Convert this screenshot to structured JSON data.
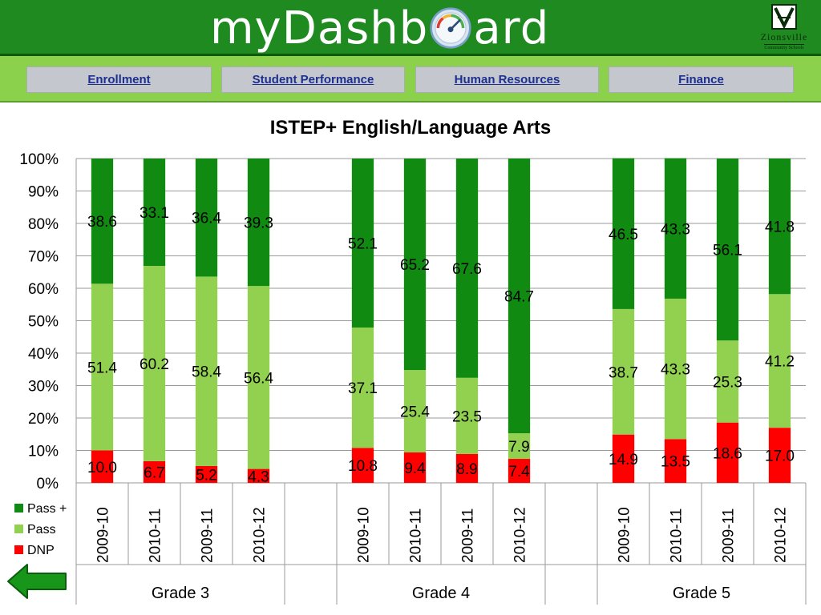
{
  "header": {
    "brand_before": "myDashb",
    "brand_after": "ard",
    "gauge_icon": "speedometer-gauge-icon",
    "logo": {
      "icon": "zionsville-crest-icon",
      "word": "Zionsville",
      "sub": "Community Schools"
    }
  },
  "nav": {
    "items": [
      {
        "label": "Enrollment"
      },
      {
        "label": "Student Performance"
      },
      {
        "label": "Human Resources"
      },
      {
        "label": "Finance"
      }
    ]
  },
  "back_icon": "back-arrow-icon",
  "colors": {
    "header_green": "#1f8a1f",
    "nav_green": "#8cd14c",
    "pass_plus": "#118a11",
    "pass": "#92d050",
    "dnp": "#ff0000"
  },
  "chart_data": {
    "type": "bar",
    "stacked": true,
    "percent_stacked": true,
    "title": "ISTEP+ English/Language Arts",
    "ylim": [
      0,
      100
    ],
    "yticks": [
      "0%",
      "10%",
      "20%",
      "30%",
      "40%",
      "50%",
      "60%",
      "70%",
      "80%",
      "90%",
      "100%"
    ],
    "grid": true,
    "legend_position": "left",
    "groups": [
      "Grade 3",
      "Grade 4",
      "Grade 5"
    ],
    "categories": [
      "2009-10",
      "2010-11",
      "2009-11",
      "2010-12",
      "2009-10",
      "2010-11",
      "2009-11",
      "2010-12",
      "2009-10",
      "2010-11",
      "2009-11",
      "2010-12"
    ],
    "series": [
      {
        "name": "DNP",
        "color": "#ff0000",
        "values": [
          10.0,
          6.7,
          5.2,
          4.3,
          10.8,
          9.4,
          8.9,
          7.4,
          14.9,
          13.5,
          18.6,
          17.0
        ],
        "labels": [
          "10.0",
          "6.7",
          "5.2",
          "4.3",
          "10.8",
          "9.4",
          "8.9",
          "7.4",
          "14.9",
          "13.5",
          "18.6",
          "17.0"
        ]
      },
      {
        "name": "Pass",
        "color": "#92d050",
        "values": [
          51.4,
          60.2,
          58.4,
          56.4,
          37.1,
          25.4,
          23.5,
          7.9,
          38.7,
          43.3,
          25.3,
          41.2
        ],
        "labels": [
          "51.4",
          "60.2",
          "58.4",
          "56.4",
          "37.1",
          "25.4",
          "23.5",
          "7.9",
          "38.7",
          "43.3",
          "25.3",
          "41.2"
        ]
      },
      {
        "name": "Pass +",
        "color": "#118a11",
        "values": [
          38.6,
          33.1,
          36.4,
          39.3,
          52.1,
          65.2,
          67.6,
          84.7,
          46.5,
          43.3,
          56.1,
          41.8
        ],
        "labels": [
          "38.6",
          "33.1",
          "36.4",
          "39.3",
          "52.1",
          "65.2",
          "67.6",
          "84.7",
          "46.5",
          "43.3",
          "56.1",
          "41.8"
        ]
      }
    ],
    "legend": [
      "Pass +",
      "Pass",
      "DNP"
    ]
  }
}
